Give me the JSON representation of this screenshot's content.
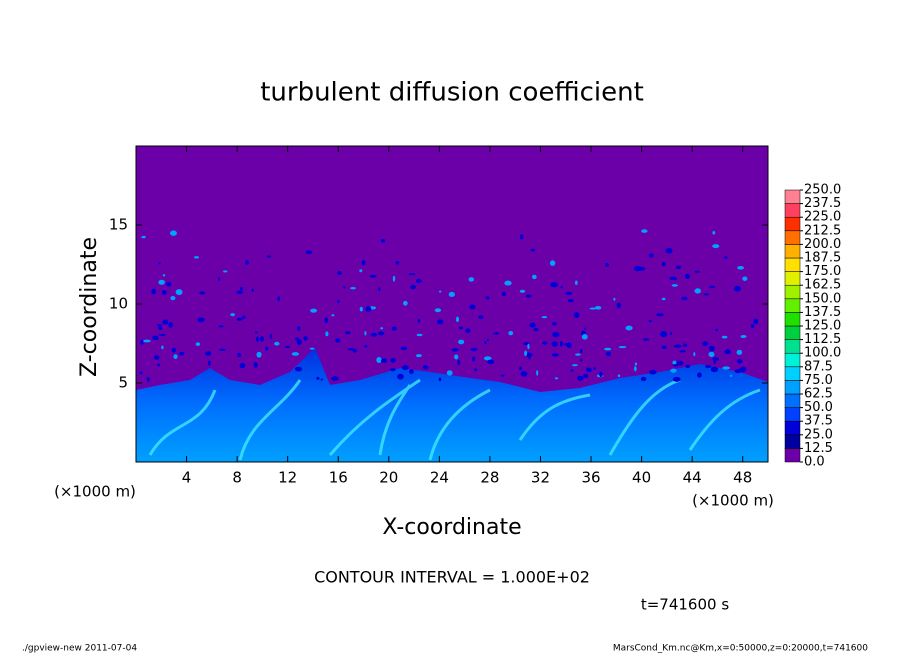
{
  "chart_data": {
    "type": "contour",
    "title": "turbulent diffusion coefficient",
    "xlabel": "X-coordinate",
    "ylabel": "Z-coordinate",
    "x_unit_labels": [
      "(×1000 m)",
      "(×1000 m)"
    ],
    "xlim": [
      0,
      50
    ],
    "ylim": [
      0,
      20
    ],
    "xticks": [
      4,
      8,
      12,
      16,
      20,
      24,
      28,
      32,
      36,
      40,
      44,
      48
    ],
    "yticks": [
      5,
      10,
      15
    ],
    "colorbar": {
      "levels": [
        {
          "value": 0,
          "label": "0.0"
        },
        12.5,
        {
          "value": 25,
          "label": "25.0"
        },
        37.5,
        {
          "value": 50,
          "label": "50.0"
        },
        62.5,
        {
          "value": 75,
          "label": "75.0"
        },
        87.5,
        {
          "value": 100,
          "label": "100.0"
        },
        112.5,
        {
          "value": 125,
          "label": "125.0"
        },
        137.5,
        {
          "value": 150,
          "label": "150.0"
        },
        162.5,
        {
          "value": 175,
          "label": "175.0"
        },
        187.5,
        {
          "value": 200,
          "label": "200.0"
        },
        212.5,
        {
          "value": 225,
          "label": "225.0"
        },
        237.5,
        {
          "value": 250,
          "label": "250.0"
        }
      ],
      "colors": [
        "#6c00a8",
        "#0000a0",
        "#0000d8",
        "#0040ff",
        "#0070ff",
        "#00a0ff",
        "#00d0ff",
        "#00f0d8",
        "#00e090",
        "#00d040",
        "#20e000",
        "#60f000",
        "#a0f000",
        "#e0f000",
        "#ffe000",
        "#ffb000",
        "#ff7000",
        "#ff3000",
        "#ff4060",
        "#ff8090"
      ]
    },
    "contour_interval_text": "CONTOUR INTERVAL = 1.000E+02",
    "time_text": "t=741600 s",
    "footer_left": "./gpview-new  2011-07-04",
    "footer_right": "MarsCond_Km.nc@Km,x=0:50000,z=0:20000,t=741600"
  }
}
